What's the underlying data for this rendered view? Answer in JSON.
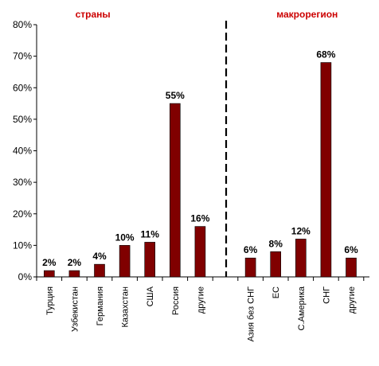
{
  "chart_data": {
    "type": "bar",
    "ylim": [
      0,
      80
    ],
    "y_tick_step": 10,
    "y_tick_format": "percent",
    "grid": false,
    "legend": "none",
    "bar_color": "#800000",
    "section_label_color": "#cc0000",
    "groups": [
      {
        "label": "страны",
        "categories": [
          "Турция",
          "Узбекистан",
          "Германия",
          "Казахстан",
          "США",
          "Россия",
          "другие"
        ],
        "values": [
          2,
          2,
          4,
          10,
          11,
          55,
          16
        ],
        "data_labels": [
          "2%",
          "2%",
          "4%",
          "10%",
          "11%",
          "55%",
          "16%"
        ]
      },
      {
        "label": "макрорегион",
        "categories": [
          "Азия без СНГ",
          "ЕС",
          "С.Америка",
          "СНГ",
          "другие"
        ],
        "values": [
          6,
          8,
          12,
          68,
          6
        ],
        "data_labels": [
          "6%",
          "8%",
          "12%",
          "68%",
          "6%"
        ]
      }
    ]
  }
}
